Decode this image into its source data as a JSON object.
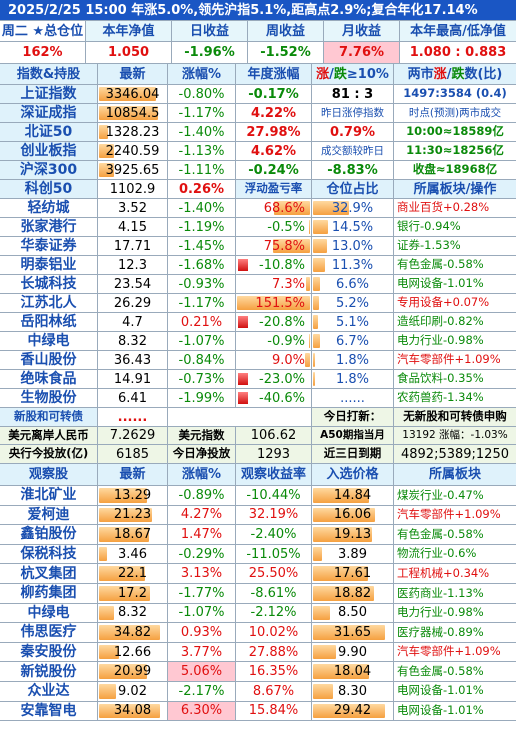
{
  "title": "2025/2/25 15:00 年涨5.0%,领先沪指5.1%,距高点2.9%;复合年化17.14%",
  "summary": {
    "headers": [
      "周二 ★总仓位",
      "本年净值",
      "日收益",
      "周收益",
      "月收益",
      "本年最高/低净值"
    ],
    "values": [
      "162%",
      "1.050",
      "-1.96%",
      "-1.52%",
      "7.76%",
      "1.080 : 0.883"
    ]
  },
  "index_header": {
    "c1": "指数&持股",
    "c2": "最新",
    "c3": "涨幅%",
    "c4": "年度涨幅",
    "c5a": "涨",
    "c5b": "/",
    "c5c": "跌",
    "c5d": "≥10%",
    "c6a": "两市",
    "c6b": "涨",
    "c6c": "/",
    "c6d": "跌",
    "c6e": "数(比)"
  },
  "indices": [
    {
      "name": "上证指数",
      "price": "3346.04",
      "chg": "-0.80%",
      "ytd": "-0.17%",
      "c5": "81 : 3",
      "c6": "1497:3584 (0.4)",
      "bar": 0.86
    },
    {
      "name": "深证成指",
      "price": "10854.5",
      "chg": "-1.17%",
      "ytd": "4.22%",
      "c5": "昨日涨停指数",
      "c6": "时点(预测)两市成交",
      "bar": 0.9
    },
    {
      "name": "北证50",
      "price": "1328.23",
      "chg": "-1.40%",
      "ytd": "27.98%",
      "c5": "0.79%",
      "c6": "10:00≈18589亿",
      "bar": 0.14
    },
    {
      "name": "创业板指",
      "price": "2240.59",
      "chg": "-1.13%",
      "ytd": "4.62%",
      "c5": "成交额较昨日",
      "c6": "11:30≈18256亿",
      "bar": 0.22
    },
    {
      "name": "沪深300",
      "price": "3925.65",
      "chg": "-1.11%",
      "ytd": "-0.24%",
      "c5": "-8.83%",
      "c6": "收盘≈18968亿",
      "bar": 0.22
    }
  ],
  "kechuang": {
    "name": "科创50",
    "price": "1102.9",
    "chg": "0.26%",
    "c4": "浮动盈亏率",
    "c5": "仓位占比",
    "c6": "所属板块/操作"
  },
  "holdings": [
    {
      "name": "轻纺城",
      "price": "3.52",
      "chg": "-1.40%",
      "pnl": "68.6%",
      "pos": "32.9%",
      "sector": "商业百货+0.28%",
      "pnlbar": 0.48,
      "posbar": 0.9,
      "sectorRed": true
    },
    {
      "name": "张家港行",
      "price": "4.15",
      "chg": "-1.19%",
      "pnl": "-0.5%",
      "pos": "14.5%",
      "sector": "银行-0.94%",
      "pnlbar": 0.02,
      "posbar": 0.38,
      "sectorRed": false
    },
    {
      "name": "华泰证券",
      "price": "17.71",
      "chg": "-1.45%",
      "pnl": "75.8%",
      "pos": "13.0%",
      "sector": "证券-1.53%",
      "pnlbar": 0.5,
      "posbar": 0.34,
      "sectorRed": false
    },
    {
      "name": "明泰铝业",
      "price": "12.3",
      "chg": "-1.68%",
      "pnl": "-10.8%",
      "pos": "11.3%",
      "sector": "有色金属-0.58%",
      "pnlbar": 0,
      "posbar": 0.3,
      "sectorRed": false,
      "negbar": true
    },
    {
      "name": "长城科技",
      "price": "23.54",
      "chg": "-0.93%",
      "pnl": "7.3%",
      "pos": "6.6%",
      "sector": "电网设备-1.01%",
      "pnlbar": 0.06,
      "posbar": 0.18,
      "sectorRed": false
    },
    {
      "name": "江苏北人",
      "price": "26.29",
      "chg": "-1.17%",
      "pnl": "151.5%",
      "pos": "5.2%",
      "sector": "专用设备+0.07%",
      "pnlbar": 0.98,
      "posbar": 0.14,
      "sectorRed": true
    },
    {
      "name": "岳阳林纸",
      "price": "4.7",
      "chg": "0.21%",
      "pnl": "-20.8%",
      "pos": "5.1%",
      "sector": "造纸印刷-0.82%",
      "pnlbar": 0,
      "posbar": 0.13,
      "sectorRed": false,
      "negbar": true
    },
    {
      "name": "中绿电",
      "price": "8.32",
      "chg": "-1.07%",
      "pnl": "-0.9%",
      "pos": "6.7%",
      "sector": "电力行业-0.98%",
      "pnlbar": 0.02,
      "posbar": 0.18,
      "sectorRed": false
    },
    {
      "name": "香山股份",
      "price": "36.43",
      "chg": "-0.84%",
      "pnl": "9.0%",
      "pos": "1.8%",
      "sector": "汽车零部件+1.09%",
      "pnlbar": 0.07,
      "posbar": 0.05,
      "sectorRed": true
    },
    {
      "name": "绝味食品",
      "price": "14.91",
      "chg": "-0.73%",
      "pnl": "-23.0%",
      "pos": "1.8%",
      "sector": "食品饮料-0.35%",
      "pnlbar": 0,
      "posbar": 0.05,
      "sectorRed": false,
      "negbar": true
    },
    {
      "name": "生物股份",
      "price": "6.41",
      "chg": "-1.99%",
      "pnl": "-40.6%",
      "pos": "......",
      "sector": "农药兽药-1.34%",
      "pnlbar": 0,
      "posbar": 0,
      "sectorRed": false,
      "negbar": true
    }
  ],
  "newstock": {
    "name": "新股和可转债",
    "dots": "......",
    "label": "今日打新：",
    "value": "无新股和可转债申购"
  },
  "fx": {
    "l1": "美元离岸人民币",
    "v1": "7.2629",
    "l2": "美元指数",
    "v2": "106.62",
    "l3": "A50期指当月",
    "v3": "13192 涨幅：-1.03%"
  },
  "pboc": {
    "l1": "央行今投放(亿)",
    "v1": "6185",
    "l2": "今日净投放",
    "v2": "1293",
    "l3": "近三日到期",
    "v3": "4892;5389;1250"
  },
  "watch_header": [
    "观察股",
    "最新",
    "涨幅%",
    "观察收益率",
    "入选价格",
    "所属板块"
  ],
  "watch": [
    {
      "name": "淮北矿业",
      "price": "13.29",
      "chg": "-0.89%",
      "ret": "-10.44%",
      "entry": "14.84",
      "sector": "煤炭行业-0.47%",
      "sectorRed": false,
      "pinkchg": false,
      "bar": 0.72
    },
    {
      "name": "爱柯迪",
      "price": "21.23",
      "chg": "4.27%",
      "ret": "32.19%",
      "entry": "16.06",
      "sector": "汽车零部件+1.09%",
      "sectorRed": true,
      "pinkchg": false,
      "bar": 0.8
    },
    {
      "name": "鑫铂股份",
      "price": "18.67",
      "chg": "1.47%",
      "ret": "-2.40%",
      "entry": "19.13",
      "sector": "有色金属-0.58%",
      "sectorRed": false,
      "pinkchg": false,
      "bar": 0.76
    },
    {
      "name": "保税科技",
      "price": "3.46",
      "chg": "-0.29%",
      "ret": "-11.05%",
      "entry": "3.89",
      "sector": "物流行业-0.6%",
      "sectorRed": false,
      "pinkchg": false,
      "bar": 0.12
    },
    {
      "name": "杭叉集团",
      "price": "22.1",
      "chg": "3.13%",
      "ret": "25.50%",
      "entry": "17.61",
      "sector": "工程机械+0.34%",
      "sectorRed": true,
      "pinkchg": false,
      "bar": 0.7
    },
    {
      "name": "柳药集团",
      "price": "17.2",
      "chg": "-1.77%",
      "ret": "-8.61%",
      "entry": "18.82",
      "sector": "医药商业-1.13%",
      "sectorRed": false,
      "pinkchg": false,
      "bar": 0.78
    },
    {
      "name": "中绿电",
      "price": "8.32",
      "chg": "-1.07%",
      "ret": "-2.12%",
      "entry": "8.50",
      "sector": "电力行业-0.98%",
      "sectorRed": false,
      "pinkchg": false,
      "bar": 0.22
    },
    {
      "name": "伟思医疗",
      "price": "34.82",
      "chg": "0.93%",
      "ret": "10.02%",
      "entry": "31.65",
      "sector": "医疗器械-0.89%",
      "sectorRed": false,
      "pinkchg": false,
      "bar": 0.92
    },
    {
      "name": "秦安股份",
      "price": "12.66",
      "chg": "3.77%",
      "ret": "27.88%",
      "entry": "9.90",
      "sector": "汽车零部件+1.09%",
      "sectorRed": true,
      "pinkchg": false,
      "bar": 0.3
    },
    {
      "name": "新锐股份",
      "price": "20.99",
      "chg": "5.06%",
      "ret": "16.35%",
      "entry": "18.04",
      "sector": "有色金属-0.58%",
      "sectorRed": false,
      "pinkchg": true,
      "bar": 0.72
    },
    {
      "name": "众业达",
      "price": "9.02",
      "chg": "-2.17%",
      "ret": "8.67%",
      "entry": "8.30",
      "sector": "电网设备-1.01%",
      "sectorRed": false,
      "pinkchg": false,
      "bar": 0.25
    },
    {
      "name": "安靠智电",
      "price": "34.08",
      "chg": "6.30%",
      "ret": "15.84%",
      "entry": "29.42",
      "sector": "电网设备-1.01%",
      "sectorRed": false,
      "pinkchg": true,
      "bar": 0.92
    }
  ],
  "colors": {
    "title_bg": "#1a56c4",
    "header_bg": "#e6f6fb",
    "up": "#e01010",
    "down": "#0a8a0a",
    "link_blue": "#1a4fb0",
    "bar": "#f5a040",
    "pink": "#ffc8d2"
  }
}
